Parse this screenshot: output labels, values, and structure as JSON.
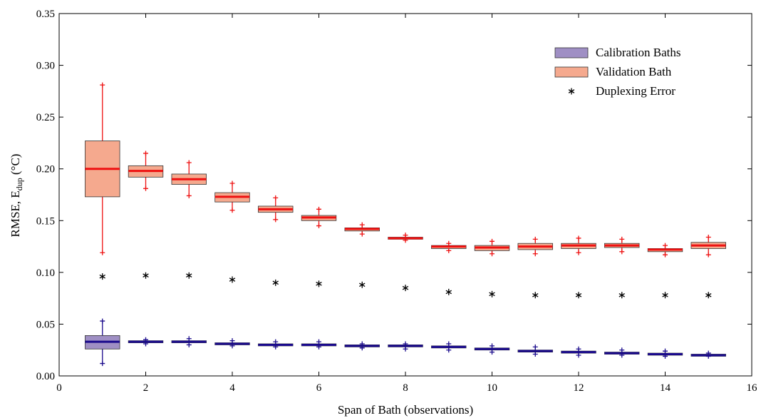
{
  "chart_data": {
    "type": "box",
    "xlabel": "Span of Bath (observations)",
    "ylabel": {
      "main": "RMSE,  E",
      "sub": "dup",
      "unit": " (°C)"
    },
    "xlim": [
      0,
      16
    ],
    "ylim": [
      0,
      0.35
    ],
    "xticks": [
      0,
      2,
      4,
      6,
      8,
      10,
      12,
      14,
      16
    ],
    "yticks": [
      0.0,
      0.05,
      0.1,
      0.15,
      0.2,
      0.25,
      0.3,
      0.35
    ],
    "ytick_labels": [
      "0.00",
      "0.05",
      "0.10",
      "0.15",
      "0.20",
      "0.25",
      "0.30",
      "0.35"
    ],
    "legend_position": "top-right",
    "grid": false,
    "legend": [
      {
        "label": "Calibration Baths",
        "kind": "box",
        "color": "#9f8fc4"
      },
      {
        "label": "Validation Bath",
        "kind": "box",
        "color": "#f5a98e"
      },
      {
        "label": "Duplexing Error",
        "kind": "marker",
        "color": "#000000"
      }
    ],
    "colors": {
      "calibration_fill": "#9f8fc4",
      "calibration_line": "#1a0a8c",
      "validation_fill": "#f5a98e",
      "validation_line": "#ee1111",
      "box_edge": "#333333",
      "duplex_marker": "#000000"
    },
    "series": [
      {
        "name": "Validation Bath",
        "boxes": [
          {
            "x": 1,
            "q1": 0.173,
            "median": 0.2,
            "q3": 0.227,
            "whislo": 0.119,
            "whishi": 0.281
          },
          {
            "x": 2,
            "q1": 0.192,
            "median": 0.198,
            "q3": 0.203,
            "whislo": 0.181,
            "whishi": 0.215
          },
          {
            "x": 3,
            "q1": 0.185,
            "median": 0.19,
            "q3": 0.195,
            "whislo": 0.174,
            "whishi": 0.206
          },
          {
            "x": 4,
            "q1": 0.168,
            "median": 0.173,
            "q3": 0.177,
            "whislo": 0.16,
            "whishi": 0.186
          },
          {
            "x": 5,
            "q1": 0.158,
            "median": 0.161,
            "q3": 0.164,
            "whislo": 0.151,
            "whishi": 0.172
          },
          {
            "x": 6,
            "q1": 0.15,
            "median": 0.153,
            "q3": 0.155,
            "whislo": 0.145,
            "whishi": 0.161
          },
          {
            "x": 7,
            "q1": 0.14,
            "median": 0.142,
            "q3": 0.143,
            "whislo": 0.137,
            "whishi": 0.146
          },
          {
            "x": 8,
            "q1": 0.132,
            "median": 0.133,
            "q3": 0.134,
            "whislo": 0.131,
            "whishi": 0.136
          },
          {
            "x": 9,
            "q1": 0.123,
            "median": 0.125,
            "q3": 0.126,
            "whislo": 0.121,
            "whishi": 0.128
          },
          {
            "x": 10,
            "q1": 0.121,
            "median": 0.124,
            "q3": 0.126,
            "whislo": 0.118,
            "whishi": 0.13
          },
          {
            "x": 11,
            "q1": 0.122,
            "median": 0.125,
            "q3": 0.128,
            "whislo": 0.118,
            "whishi": 0.132
          },
          {
            "x": 12,
            "q1": 0.123,
            "median": 0.126,
            "q3": 0.128,
            "whislo": 0.119,
            "whishi": 0.133
          },
          {
            "x": 13,
            "q1": 0.124,
            "median": 0.126,
            "q3": 0.128,
            "whislo": 0.12,
            "whishi": 0.132
          },
          {
            "x": 14,
            "q1": 0.12,
            "median": 0.122,
            "q3": 0.123,
            "whislo": 0.117,
            "whishi": 0.126
          },
          {
            "x": 15,
            "q1": 0.123,
            "median": 0.126,
            "q3": 0.129,
            "whislo": 0.117,
            "whishi": 0.134
          }
        ]
      },
      {
        "name": "Calibration Baths",
        "boxes": [
          {
            "x": 1,
            "q1": 0.026,
            "median": 0.033,
            "q3": 0.039,
            "whislo": 0.012,
            "whishi": 0.053
          },
          {
            "x": 2,
            "q1": 0.032,
            "median": 0.033,
            "q3": 0.034,
            "whislo": 0.031,
            "whishi": 0.035
          },
          {
            "x": 3,
            "q1": 0.032,
            "median": 0.033,
            "q3": 0.034,
            "whislo": 0.03,
            "whishi": 0.036
          },
          {
            "x": 4,
            "q1": 0.03,
            "median": 0.031,
            "q3": 0.032,
            "whislo": 0.029,
            "whishi": 0.034
          },
          {
            "x": 5,
            "q1": 0.029,
            "median": 0.03,
            "q3": 0.031,
            "whislo": 0.028,
            "whishi": 0.033
          },
          {
            "x": 6,
            "q1": 0.029,
            "median": 0.03,
            "q3": 0.031,
            "whislo": 0.028,
            "whishi": 0.033
          },
          {
            "x": 7,
            "q1": 0.028,
            "median": 0.029,
            "q3": 0.03,
            "whislo": 0.027,
            "whishi": 0.031
          },
          {
            "x": 8,
            "q1": 0.028,
            "median": 0.029,
            "q3": 0.03,
            "whislo": 0.026,
            "whishi": 0.031
          },
          {
            "x": 9,
            "q1": 0.027,
            "median": 0.028,
            "q3": 0.029,
            "whislo": 0.025,
            "whishi": 0.031
          },
          {
            "x": 10,
            "q1": 0.025,
            "median": 0.026,
            "q3": 0.027,
            "whislo": 0.023,
            "whishi": 0.029
          },
          {
            "x": 11,
            "q1": 0.023,
            "median": 0.024,
            "q3": 0.025,
            "whislo": 0.021,
            "whishi": 0.028
          },
          {
            "x": 12,
            "q1": 0.022,
            "median": 0.023,
            "q3": 0.024,
            "whislo": 0.02,
            "whishi": 0.026
          },
          {
            "x": 13,
            "q1": 0.021,
            "median": 0.022,
            "q3": 0.023,
            "whislo": 0.02,
            "whishi": 0.025
          },
          {
            "x": 14,
            "q1": 0.02,
            "median": 0.021,
            "q3": 0.022,
            "whislo": 0.019,
            "whishi": 0.024
          },
          {
            "x": 15,
            "q1": 0.019,
            "median": 0.02,
            "q3": 0.021,
            "whislo": 0.019,
            "whishi": 0.022
          }
        ]
      },
      {
        "name": "Duplexing Error",
        "x": [
          1,
          2,
          3,
          4,
          5,
          6,
          7,
          8,
          9,
          10,
          11,
          12,
          13,
          14,
          15
        ],
        "y": [
          0.096,
          0.097,
          0.097,
          0.093,
          0.09,
          0.089,
          0.088,
          0.085,
          0.081,
          0.079,
          0.078,
          0.078,
          0.078,
          0.078,
          0.078
        ]
      }
    ]
  }
}
